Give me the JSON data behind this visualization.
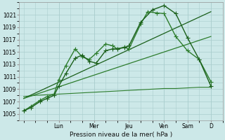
{
  "background_color": "#cce8e8",
  "grid_color": "#aacece",
  "title": "Pression niveau de la mer( hPa )",
  "ylim": [
    1004.0,
    1023.0
  ],
  "yticks": [
    1005,
    1007,
    1009,
    1011,
    1013,
    1015,
    1017,
    1019,
    1021
  ],
  "xlim": [
    -0.2,
    8.5
  ],
  "day_labels": [
    "Lun",
    "Mer",
    "Jeu",
    "Ven",
    "Sam",
    "D"
  ],
  "day_positions": [
    1.5,
    3.0,
    4.5,
    6.0,
    7.0,
    8.0
  ],
  "line_dark": "#1a5f1a",
  "line_med": "#2d7d2d",
  "series_zigzag1": {
    "x": [
      0,
      0.3,
      0.7,
      1.0,
      1.3,
      1.5,
      1.8,
      2.2,
      2.5,
      2.8,
      3.1,
      3.5,
      3.8,
      4.0,
      4.3,
      4.5,
      5.0,
      5.3,
      5.7,
      6.0,
      6.5,
      7.0,
      7.5,
      8.0
    ],
    "y": [
      1005.5,
      1006.2,
      1007.2,
      1007.8,
      1008.2,
      1010.5,
      1012.8,
      1015.5,
      1014.2,
      1013.8,
      1014.8,
      1016.3,
      1016.0,
      1015.5,
      1015.8,
      1015.5,
      1019.5,
      1021.5,
      1021.3,
      1021.2,
      1017.5,
      1015.2,
      1013.8,
      1010.2
    ],
    "color": "#2d7d2d",
    "lw": 1.0,
    "marker": "+"
  },
  "series_zigzag2": {
    "x": [
      0,
      0.3,
      0.7,
      1.0,
      1.3,
      1.5,
      1.8,
      2.2,
      2.5,
      2.8,
      3.1,
      3.5,
      3.8,
      4.0,
      4.3,
      4.5,
      5.0,
      5.5,
      6.0,
      6.5,
      7.0,
      7.5,
      8.0
    ],
    "y": [
      1005.5,
      1006.0,
      1007.0,
      1007.5,
      1008.0,
      1009.5,
      1011.5,
      1014.0,
      1014.5,
      1013.5,
      1013.2,
      1015.2,
      1015.5,
      1015.5,
      1015.7,
      1016.0,
      1019.8,
      1021.8,
      1022.5,
      1021.2,
      1017.3,
      1013.8,
      1009.5
    ],
    "color": "#1a5f1a",
    "lw": 1.0,
    "marker": "+"
  },
  "series_diag1": {
    "x": [
      0.0,
      8.0
    ],
    "y": [
      1007.5,
      1021.5
    ],
    "color": "#1a5f1a",
    "lw": 0.9
  },
  "series_diag2": {
    "x": [
      0.0,
      8.0
    ],
    "y": [
      1007.5,
      1017.5
    ],
    "color": "#2d7d2d",
    "lw": 0.9
  },
  "series_flat": {
    "x": [
      0.0,
      0.5,
      1.0,
      1.5,
      2.0,
      2.5,
      3.0,
      3.5,
      4.0,
      4.5,
      5.0,
      5.5,
      6.0,
      6.5,
      7.0,
      7.5,
      8.0
    ],
    "y": [
      1007.8,
      1008.0,
      1008.1,
      1008.2,
      1008.3,
      1008.4,
      1008.5,
      1008.6,
      1008.7,
      1008.8,
      1008.9,
      1009.0,
      1009.1,
      1009.1,
      1009.2,
      1009.3,
      1009.3
    ],
    "color": "#2d7d2d",
    "lw": 0.8
  }
}
